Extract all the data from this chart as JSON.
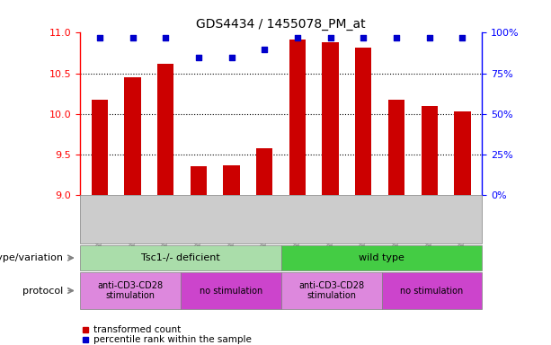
{
  "title": "GDS4434 / 1455078_PM_at",
  "samples": [
    "GSM738375",
    "GSM738378",
    "GSM738380",
    "GSM738373",
    "GSM738377",
    "GSM738379",
    "GSM738365",
    "GSM738368",
    "GSM738372",
    "GSM738363",
    "GSM738367",
    "GSM738370"
  ],
  "bar_values": [
    10.17,
    10.45,
    10.62,
    9.35,
    9.37,
    9.58,
    10.92,
    10.88,
    10.82,
    10.17,
    10.1,
    10.03
  ],
  "percentile_values": [
    97,
    97,
    97,
    85,
    85,
    90,
    97,
    97,
    97,
    97,
    97,
    97
  ],
  "bar_color": "#cc0000",
  "percentile_color": "#0000cc",
  "ylim_left": [
    9,
    11
  ],
  "yticks_left": [
    9,
    9.5,
    10,
    10.5,
    11
  ],
  "ylim_right": [
    0,
    100
  ],
  "yticks_right": [
    0,
    25,
    50,
    75,
    100
  ],
  "yticklabels_right": [
    "0%",
    "25%",
    "50%",
    "75%",
    "100%"
  ],
  "genotype_groups": [
    {
      "label": "Tsc1-/- deficient",
      "start": 0,
      "end": 6,
      "color": "#aaddaa"
    },
    {
      "label": "wild type",
      "start": 6,
      "end": 12,
      "color": "#44cc44"
    }
  ],
  "protocol_groups": [
    {
      "label": "anti-CD3-CD28\nstimulation",
      "start": 0,
      "end": 3,
      "color": "#dd88dd"
    },
    {
      "label": "no stimulation",
      "start": 3,
      "end": 6,
      "color": "#cc44cc"
    },
    {
      "label": "anti-CD3-CD28\nstimulation",
      "start": 6,
      "end": 9,
      "color": "#dd88dd"
    },
    {
      "label": "no stimulation",
      "start": 9,
      "end": 12,
      "color": "#cc44cc"
    }
  ],
  "legend_bar_label": "transformed count",
  "legend_pct_label": "percentile rank within the sample",
  "genotype_label": "genotype/variation",
  "protocol_label": "protocol",
  "xtick_bg": "#cccccc",
  "background_color": "#ffffff"
}
